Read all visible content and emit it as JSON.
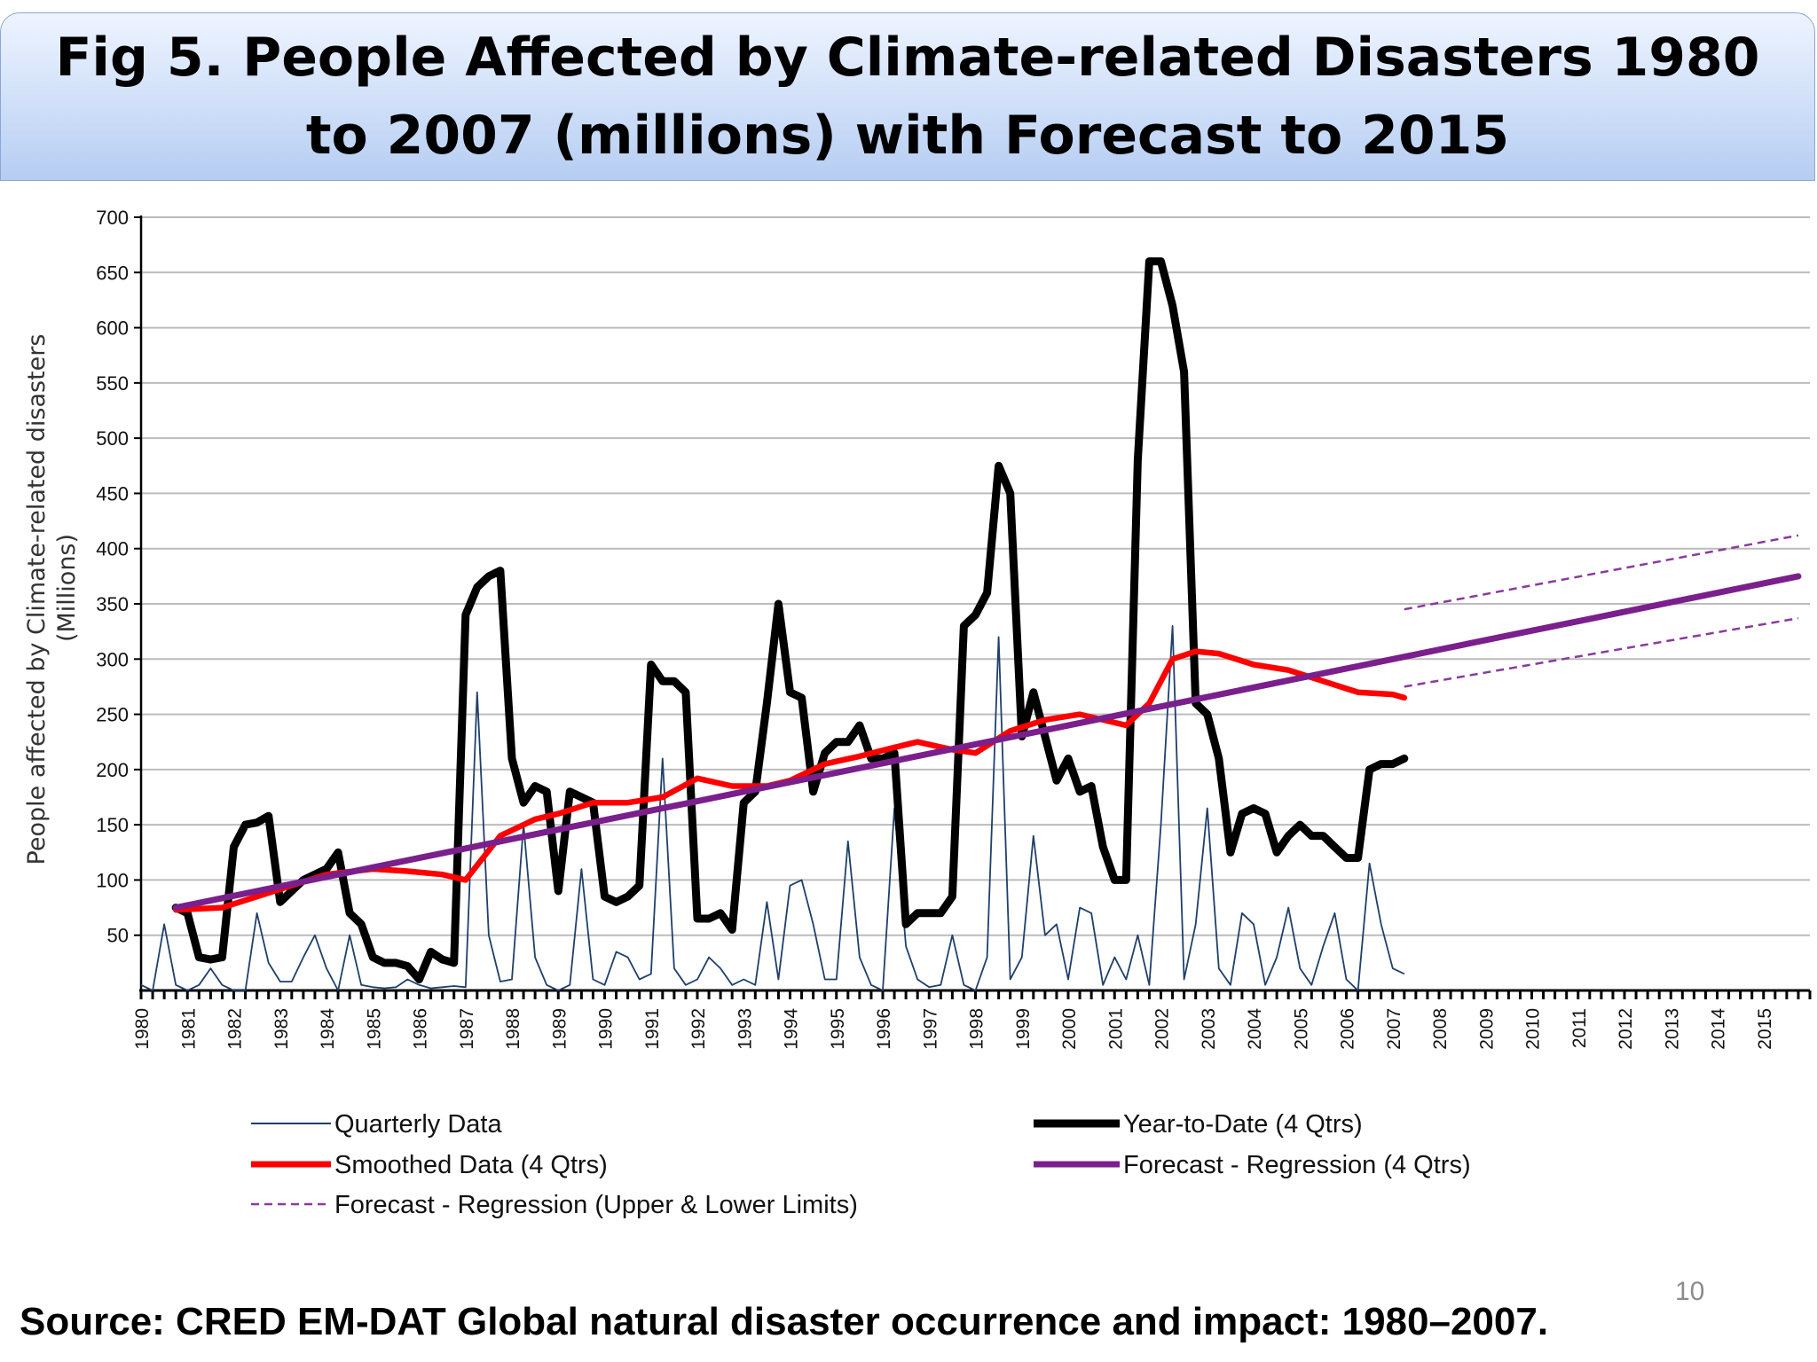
{
  "slide": {
    "title": "Fig 5. People Affected by Climate-related Disasters 1980 to 2007 (millions) with Forecast to 2015",
    "source": "Source: CRED EM-DAT Global natural disaster occurrence and impact: 1980–2007.",
    "page_number": "10"
  },
  "chart_data": {
    "type": "line",
    "title": "Fig 5. People Affected by Climate-related Disasters 1980 to 2007 (millions) with Forecast to 2015",
    "ylabel": "People affected by Climate-related disasters",
    "ylabel_unit": "(Millions)",
    "xlabel": "",
    "ylim": [
      0,
      700
    ],
    "yticks": [
      50,
      100,
      150,
      200,
      250,
      300,
      350,
      400,
      450,
      500,
      550,
      600,
      650,
      700
    ],
    "xlim": [
      1980,
      2016
    ],
    "xtick_labels": [
      "1980",
      "1981",
      "1982",
      "1983",
      "1984",
      "1985",
      "1986",
      "1987",
      "1988",
      "1989",
      "1990",
      "1991",
      "1992",
      "1993",
      "1994",
      "1995",
      "1996",
      "1997",
      "1998",
      "1999",
      "2000",
      "2001",
      "2002",
      "2003",
      "2004",
      "2005",
      "2006",
      "2007",
      "2008",
      "2009",
      "2010",
      "2011",
      "2012",
      "2013",
      "2014",
      "2015"
    ],
    "grid": true,
    "legend_position": "bottom",
    "series": [
      {
        "name": "Quarterly Data",
        "color": "#1f3f6b",
        "style": "thin",
        "points": [
          [
            1980.0,
            5
          ],
          [
            1980.25,
            0
          ],
          [
            1980.5,
            60
          ],
          [
            1980.75,
            5
          ],
          [
            1981.0,
            0
          ],
          [
            1981.25,
            5
          ],
          [
            1981.5,
            20
          ],
          [
            1981.75,
            5
          ],
          [
            1982.0,
            0
          ],
          [
            1982.25,
            0
          ],
          [
            1982.5,
            70
          ],
          [
            1982.75,
            25
          ],
          [
            1983.0,
            8
          ],
          [
            1983.25,
            8
          ],
          [
            1983.5,
            30
          ],
          [
            1983.75,
            50
          ],
          [
            1984.0,
            20
          ],
          [
            1984.25,
            0
          ],
          [
            1984.5,
            50
          ],
          [
            1984.75,
            5
          ],
          [
            1985.0,
            3
          ],
          [
            1985.25,
            2
          ],
          [
            1985.5,
            3
          ],
          [
            1985.75,
            10
          ],
          [
            1986.0,
            5
          ],
          [
            1986.25,
            2
          ],
          [
            1986.5,
            3
          ],
          [
            1986.75,
            4
          ],
          [
            1987.0,
            3
          ],
          [
            1987.25,
            270
          ],
          [
            1987.5,
            50
          ],
          [
            1987.75,
            8
          ],
          [
            1988.0,
            10
          ],
          [
            1988.25,
            150
          ],
          [
            1988.5,
            30
          ],
          [
            1988.75,
            5
          ],
          [
            1989.0,
            0
          ],
          [
            1989.25,
            5
          ],
          [
            1989.5,
            110
          ],
          [
            1989.75,
            10
          ],
          [
            1990.0,
            5
          ],
          [
            1990.25,
            35
          ],
          [
            1990.5,
            30
          ],
          [
            1990.75,
            10
          ],
          [
            1991.0,
            15
          ],
          [
            1991.25,
            210
          ],
          [
            1991.5,
            20
          ],
          [
            1991.75,
            5
          ],
          [
            1992.0,
            10
          ],
          [
            1992.25,
            30
          ],
          [
            1992.5,
            20
          ],
          [
            1992.75,
            5
          ],
          [
            1993.0,
            10
          ],
          [
            1993.25,
            5
          ],
          [
            1993.5,
            80
          ],
          [
            1993.75,
            10
          ],
          [
            1994.0,
            95
          ],
          [
            1994.25,
            100
          ],
          [
            1994.5,
            60
          ],
          [
            1994.75,
            10
          ],
          [
            1995.0,
            10
          ],
          [
            1995.25,
            135
          ],
          [
            1995.5,
            30
          ],
          [
            1995.75,
            5
          ],
          [
            1996.0,
            0
          ],
          [
            1996.25,
            165
          ],
          [
            1996.5,
            40
          ],
          [
            1996.75,
            10
          ],
          [
            1997.0,
            3
          ],
          [
            1997.25,
            5
          ],
          [
            1997.5,
            50
          ],
          [
            1997.75,
            5
          ],
          [
            1998.0,
            0
          ],
          [
            1998.25,
            30
          ],
          [
            1998.5,
            320
          ],
          [
            1998.75,
            10
          ],
          [
            1999.0,
            30
          ],
          [
            1999.25,
            140
          ],
          [
            1999.5,
            50
          ],
          [
            1999.75,
            60
          ],
          [
            2000.0,
            10
          ],
          [
            2000.25,
            75
          ],
          [
            2000.5,
            70
          ],
          [
            2000.75,
            5
          ],
          [
            2001.0,
            30
          ],
          [
            2001.25,
            10
          ],
          [
            2001.5,
            50
          ],
          [
            2001.75,
            5
          ],
          [
            2002.0,
            150
          ],
          [
            2002.25,
            330
          ],
          [
            2002.5,
            10
          ],
          [
            2002.75,
            60
          ],
          [
            2003.0,
            165
          ],
          [
            2003.25,
            20
          ],
          [
            2003.5,
            5
          ],
          [
            2003.75,
            70
          ],
          [
            2004.0,
            60
          ],
          [
            2004.25,
            5
          ],
          [
            2004.5,
            30
          ],
          [
            2004.75,
            75
          ],
          [
            2005.0,
            20
          ],
          [
            2005.25,
            5
          ],
          [
            2005.5,
            40
          ],
          [
            2005.75,
            70
          ],
          [
            2006.0,
            10
          ],
          [
            2006.25,
            0
          ],
          [
            2006.5,
            115
          ],
          [
            2006.75,
            60
          ],
          [
            2007.0,
            20
          ],
          [
            2007.25,
            15
          ]
        ]
      },
      {
        "name": "Year-to-Date (4 Qtrs)",
        "color": "#000000",
        "style": "thick",
        "points": [
          [
            1980.75,
            75
          ],
          [
            1981.0,
            70
          ],
          [
            1981.25,
            30
          ],
          [
            1981.5,
            28
          ],
          [
            1981.75,
            30
          ],
          [
            1982.0,
            130
          ],
          [
            1982.25,
            150
          ],
          [
            1982.5,
            152
          ],
          [
            1982.75,
            158
          ],
          [
            1983.0,
            80
          ],
          [
            1983.25,
            90
          ],
          [
            1983.5,
            100
          ],
          [
            1983.75,
            105
          ],
          [
            1984.0,
            110
          ],
          [
            1984.25,
            125
          ],
          [
            1984.5,
            70
          ],
          [
            1984.75,
            60
          ],
          [
            1985.0,
            30
          ],
          [
            1985.25,
            25
          ],
          [
            1985.5,
            25
          ],
          [
            1985.75,
            22
          ],
          [
            1986.0,
            10
          ],
          [
            1986.25,
            35
          ],
          [
            1986.5,
            28
          ],
          [
            1986.75,
            25
          ],
          [
            1987.0,
            340
          ],
          [
            1987.25,
            365
          ],
          [
            1987.5,
            375
          ],
          [
            1987.75,
            380
          ],
          [
            1988.0,
            210
          ],
          [
            1988.25,
            170
          ],
          [
            1988.5,
            185
          ],
          [
            1988.75,
            180
          ],
          [
            1989.0,
            90
          ],
          [
            1989.25,
            180
          ],
          [
            1989.5,
            175
          ],
          [
            1989.75,
            170
          ],
          [
            1990.0,
            85
          ],
          [
            1990.25,
            80
          ],
          [
            1990.5,
            85
          ],
          [
            1990.75,
            95
          ],
          [
            1991.0,
            295
          ],
          [
            1991.25,
            280
          ],
          [
            1991.5,
            280
          ],
          [
            1991.75,
            270
          ],
          [
            1992.0,
            65
          ],
          [
            1992.25,
            65
          ],
          [
            1992.5,
            70
          ],
          [
            1992.75,
            55
          ],
          [
            1993.0,
            170
          ],
          [
            1993.25,
            180
          ],
          [
            1993.5,
            260
          ],
          [
            1993.75,
            350
          ],
          [
            1994.0,
            270
          ],
          [
            1994.25,
            265
          ],
          [
            1994.5,
            180
          ],
          [
            1994.75,
            215
          ],
          [
            1995.0,
            225
          ],
          [
            1995.25,
            225
          ],
          [
            1995.5,
            240
          ],
          [
            1995.75,
            210
          ],
          [
            1996.0,
            210
          ],
          [
            1996.25,
            215
          ],
          [
            1996.5,
            60
          ],
          [
            1996.75,
            70
          ],
          [
            1997.0,
            70
          ],
          [
            1997.25,
            70
          ],
          [
            1997.5,
            85
          ],
          [
            1997.75,
            330
          ],
          [
            1998.0,
            340
          ],
          [
            1998.25,
            360
          ],
          [
            1998.5,
            475
          ],
          [
            1998.75,
            450
          ],
          [
            1999.0,
            230
          ],
          [
            1999.25,
            270
          ],
          [
            1999.5,
            230
          ],
          [
            1999.75,
            190
          ],
          [
            2000.0,
            210
          ],
          [
            2000.25,
            180
          ],
          [
            2000.5,
            185
          ],
          [
            2000.75,
            130
          ],
          [
            2001.0,
            100
          ],
          [
            2001.25,
            100
          ],
          [
            2001.5,
            480
          ],
          [
            2001.75,
            660
          ],
          [
            2002.0,
            660
          ],
          [
            2002.25,
            620
          ],
          [
            2002.5,
            560
          ],
          [
            2002.75,
            260
          ],
          [
            2003.0,
            250
          ],
          [
            2003.25,
            210
          ],
          [
            2003.5,
            125
          ],
          [
            2003.75,
            160
          ],
          [
            2004.0,
            165
          ],
          [
            2004.25,
            160
          ],
          [
            2004.5,
            125
          ],
          [
            2004.75,
            140
          ],
          [
            2005.0,
            150
          ],
          [
            2005.25,
            140
          ],
          [
            2005.5,
            140
          ],
          [
            2005.75,
            130
          ],
          [
            2006.0,
            120
          ],
          [
            2006.25,
            120
          ],
          [
            2006.5,
            200
          ],
          [
            2006.75,
            205
          ],
          [
            2007.0,
            205
          ],
          [
            2007.25,
            210
          ]
        ]
      },
      {
        "name": "Smoothed Data (4 Qtrs)",
        "color": "#ff0000",
        "style": "thick",
        "points": [
          [
            1980.75,
            73
          ],
          [
            1981.75,
            75
          ],
          [
            1982.5,
            85
          ],
          [
            1983.25,
            95
          ],
          [
            1984.0,
            105
          ],
          [
            1985.0,
            110
          ],
          [
            1985.75,
            108
          ],
          [
            1986.5,
            105
          ],
          [
            1987.0,
            100
          ],
          [
            1987.75,
            140
          ],
          [
            1988.5,
            155
          ],
          [
            1989.0,
            160
          ],
          [
            1989.75,
            170
          ],
          [
            1990.5,
            170
          ],
          [
            1991.25,
            175
          ],
          [
            1992.0,
            192
          ],
          [
            1992.75,
            185
          ],
          [
            1993.5,
            185
          ],
          [
            1994.0,
            190
          ],
          [
            1994.75,
            205
          ],
          [
            1995.5,
            212
          ],
          [
            1996.25,
            220
          ],
          [
            1996.75,
            225
          ],
          [
            1997.5,
            218
          ],
          [
            1998.0,
            215
          ],
          [
            1998.75,
            235
          ],
          [
            1999.5,
            245
          ],
          [
            2000.25,
            250
          ],
          [
            2001.25,
            240
          ],
          [
            2001.75,
            260
          ],
          [
            2002.25,
            300
          ],
          [
            2002.75,
            307
          ],
          [
            2003.25,
            305
          ],
          [
            2004.0,
            295
          ],
          [
            2004.75,
            290
          ],
          [
            2005.5,
            280
          ],
          [
            2006.25,
            270
          ],
          [
            2007.0,
            268
          ],
          [
            2007.25,
            265
          ]
        ]
      },
      {
        "name": "Forecast - Regression (4 Qtrs)",
        "color": "#7a1f8c",
        "style": "thick",
        "points": [
          [
            1980.75,
            75
          ],
          [
            2015.75,
            375
          ]
        ]
      },
      {
        "name": "Forecast - Regression (Upper & Lower Limits)",
        "color": "#8a3a9e",
        "style": "dashed",
        "upper": [
          [
            2007.25,
            345
          ],
          [
            2015.75,
            412
          ]
        ],
        "lower": [
          [
            2007.25,
            275
          ],
          [
            2015.75,
            337
          ]
        ]
      }
    ]
  }
}
